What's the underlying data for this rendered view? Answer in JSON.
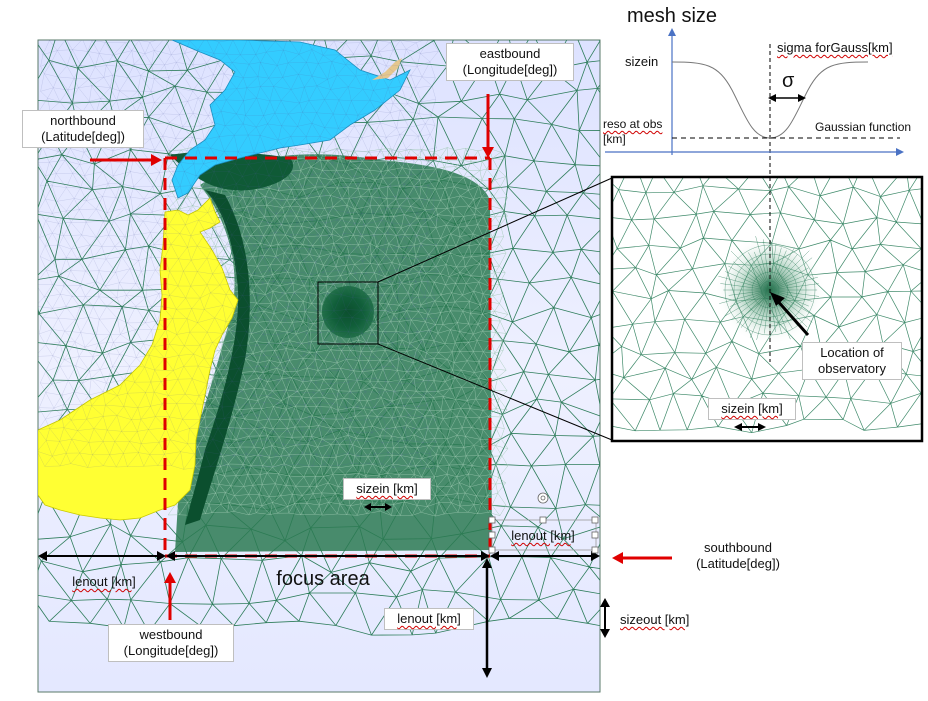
{
  "labels": {
    "mesh_size_title": "mesh size",
    "sizein": "sizein",
    "sigma_for_gauss": "sigma forGauss[km]",
    "sigma_symbol": "σ",
    "reso_at_obs_line1": "reso at obs",
    "reso_at_obs_line2": "[km]",
    "gaussian_function": "Gaussian function",
    "eastbound_line1": "eastbound",
    "eastbound_line2": "(Longitude[deg])",
    "northbound_line1": "northbound",
    "northbound_line2": "(Latitude[deg])",
    "southbound_line1": "southbound",
    "southbound_line2": "(Latitude[deg])",
    "westbound_line1": "westbound",
    "westbound_line2": "(Longitude[deg])",
    "location_line1": "Location of",
    "location_line2": "observatory",
    "sizein_km_inset": "sizein [km]",
    "sizein_km_main": "sizein [km]",
    "lenout_km_left": "lenout [km]",
    "lenout_km_right": "lenout [km]",
    "lenout_km_bottom": "lenout [km]",
    "focus_area": "focus area",
    "sizeout_km": "sizeout [km]"
  },
  "colors": {
    "mesh_line": "#2e7d5b",
    "dense_mesh": "#0e5a36",
    "sea_bg": "#eef0ff",
    "land_yellow": "#ffff33",
    "land_blue": "#33ccff",
    "arrow_red": "#e00000",
    "arrow_black": "#000000",
    "axis_blue": "#4a72c4"
  }
}
